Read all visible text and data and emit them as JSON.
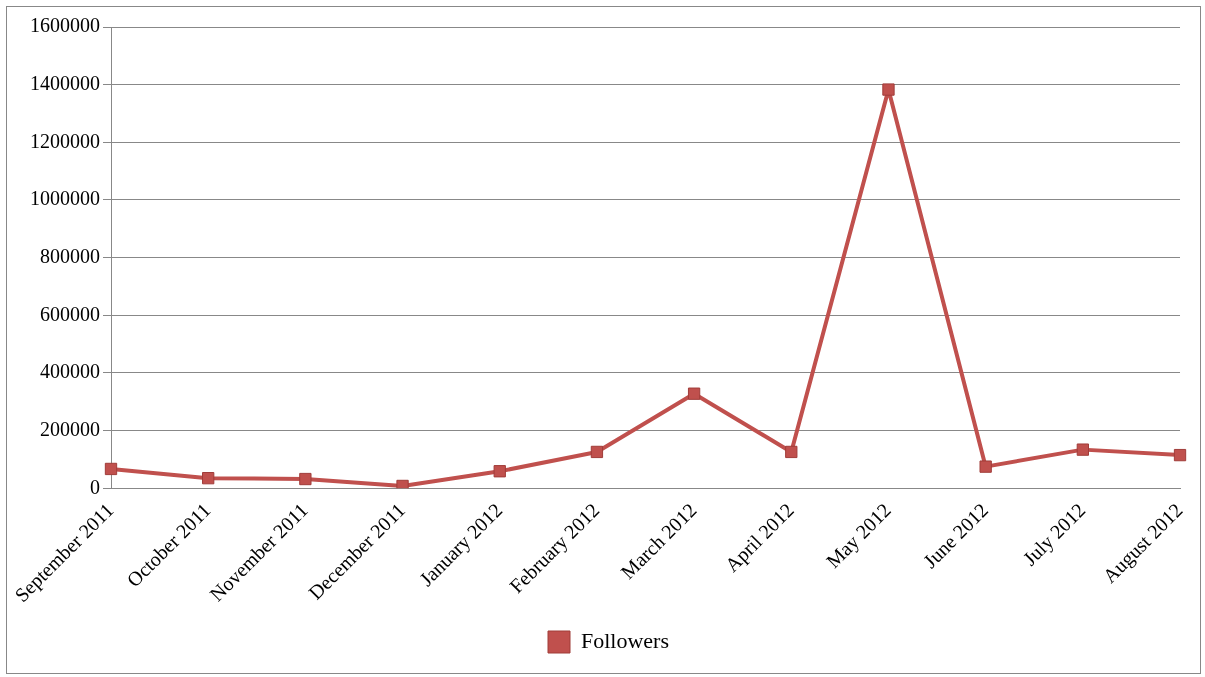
{
  "chart_data": {
    "type": "line",
    "categories": [
      "September 2011",
      "October 2011",
      "November 2011",
      "December 2011",
      "January 2012",
      "February 2012",
      "March 2012",
      "April 2012",
      "May 2012",
      "June 2012",
      "July 2012",
      "August 2012"
    ],
    "series": [
      {
        "name": "Followers",
        "color": "#c0504d",
        "values": [
          67000,
          35000,
          32000,
          8000,
          59000,
          126000,
          328000,
          126000,
          1383000,
          75000,
          134000,
          115000
        ]
      }
    ],
    "ylim": [
      0,
      1600000
    ],
    "yticks": [
      0,
      200000,
      400000,
      600000,
      800000,
      1000000,
      1200000,
      1400000,
      1600000
    ],
    "grid": "y",
    "legend": "bottom",
    "marker": "square",
    "line_style": "solid"
  }
}
